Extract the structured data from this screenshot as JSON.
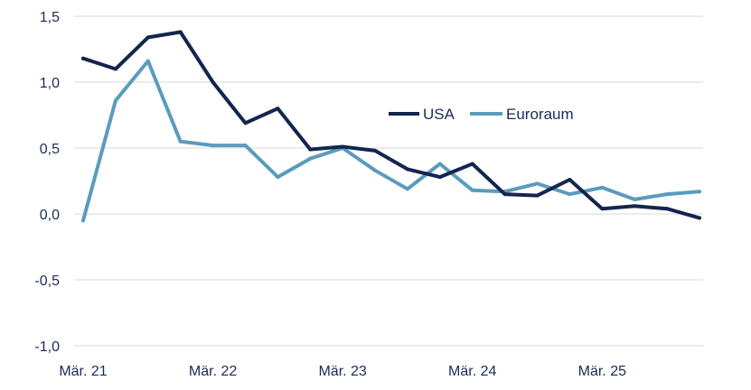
{
  "chart_data": {
    "type": "line",
    "title": "",
    "xlabel": "",
    "ylabel": "",
    "ylim": [
      -1.0,
      1.5
    ],
    "yticks": [
      {
        "value": 1.5,
        "label": "1,5"
      },
      {
        "value": 1.0,
        "label": "1,0"
      },
      {
        "value": 0.5,
        "label": "0,5"
      },
      {
        "value": 0.0,
        "label": "0,0"
      },
      {
        "value": -0.5,
        "label": "-0,5"
      },
      {
        "value": -1.0,
        "label": "-1,0"
      }
    ],
    "xticks": [
      {
        "index": 0,
        "label": "Mär. 21"
      },
      {
        "index": 4,
        "label": "Mär. 22"
      },
      {
        "index": 8,
        "label": "Mär. 23"
      },
      {
        "index": 12,
        "label": "Mär. 24"
      },
      {
        "index": 16,
        "label": "Mär. 25"
      }
    ],
    "grid": true,
    "legend_position": "center-right",
    "series": [
      {
        "name": "USA",
        "color": "#13254f",
        "values": [
          1.18,
          1.1,
          1.34,
          1.38,
          1.0,
          0.69,
          0.8,
          0.49,
          0.51,
          0.48,
          0.34,
          0.28,
          0.38,
          0.15,
          0.14,
          0.26,
          0.04,
          0.06,
          0.04,
          -0.03
        ]
      },
      {
        "name": "Euroraum",
        "color": "#5b9bbd",
        "values": [
          -0.05,
          0.86,
          1.16,
          0.55,
          0.52,
          0.52,
          0.28,
          0.42,
          0.5,
          0.33,
          0.19,
          0.38,
          0.18,
          0.17,
          0.23,
          0.15,
          0.2,
          0.11,
          0.15,
          0.17
        ]
      }
    ]
  }
}
